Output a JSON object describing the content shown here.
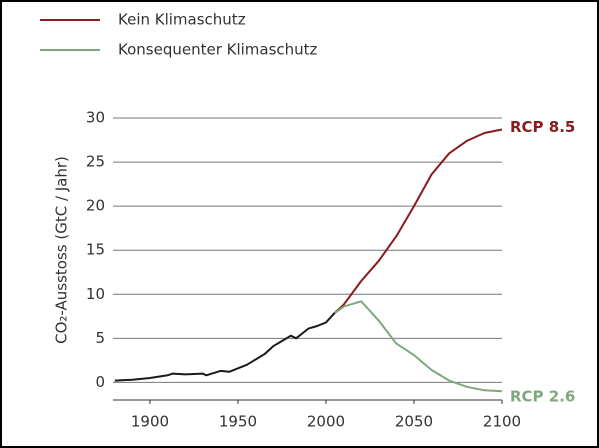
{
  "chart_data": {
    "type": "line",
    "y_label": "CO₂-Ausstoss (GtC / Jahr)",
    "series": [
      {
        "color": "#1a1a1a",
        "x": [
          1880,
          1890,
          1900,
          1910,
          1913,
          1920,
          1930,
          1932,
          1940,
          1945,
          1950,
          1955,
          1960,
          1965,
          1970,
          1975,
          1980,
          1983,
          1990,
          1995,
          2000,
          2005,
          2010
        ],
        "values": [
          0.2,
          0.3,
          0.5,
          0.8,
          1.0,
          0.9,
          1.0,
          0.8,
          1.3,
          1.2,
          1.6,
          2.0,
          2.6,
          3.2,
          4.1,
          4.7,
          5.3,
          5.0,
          6.1,
          6.4,
          6.8,
          7.9,
          8.6
        ]
      },
      {
        "name": "Kein Klimaschutz",
        "color": "#8b1a1a",
        "x": [
          2005,
          2010,
          2020,
          2030,
          2040,
          2050,
          2060,
          2070,
          2080,
          2090,
          2100
        ],
        "values": [
          7.9,
          8.8,
          11.5,
          13.8,
          16.6,
          20.0,
          23.6,
          26.0,
          27.4,
          28.3,
          28.7
        ]
      },
      {
        "name": "Konsequenter Klimaschutz",
        "color": "#7fa77f",
        "x": [
          2005,
          2010,
          2020,
          2030,
          2040,
          2050,
          2060,
          2070,
          2080,
          2090,
          2100
        ],
        "values": [
          7.9,
          8.6,
          9.2,
          7.0,
          4.4,
          3.1,
          1.4,
          0.2,
          -0.5,
          -0.9,
          -1.0
        ]
      }
    ],
    "annotations": [
      "RCP 8.5",
      "RCP 2.6"
    ],
    "xlim": [
      1879,
      2100
    ],
    "xticks": [
      1900,
      1950,
      2000,
      2050,
      2100
    ],
    "ylim": [
      -2,
      30
    ],
    "yticks": [
      0,
      5,
      10,
      15,
      20,
      25,
      30
    ],
    "grid": true
  }
}
